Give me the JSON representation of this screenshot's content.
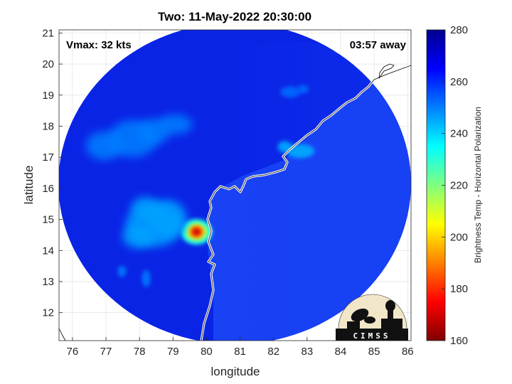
{
  "title": "Two: 11-May-2022 20:30:00",
  "info": {
    "vmax": "Vmax: 32 kts",
    "time_away": "03:57 away"
  },
  "axes": {
    "xlabel": "longitude",
    "ylabel": "latitude",
    "xlim": [
      75.6,
      86.1
    ],
    "ylim": [
      11.1,
      21.1
    ],
    "xticks": [
      "76",
      "77",
      "78",
      "79",
      "80",
      "81",
      "82",
      "83",
      "84",
      "85",
      "86"
    ],
    "yticks": [
      "12",
      "13",
      "14",
      "15",
      "16",
      "17",
      "18",
      "19",
      "20",
      "21"
    ],
    "grid": true
  },
  "colorbar": {
    "label": "Brightness Temp - Horizontal Polarization",
    "ticks": [
      "160",
      "180",
      "200",
      "220",
      "240",
      "260",
      "280"
    ],
    "range": [
      160,
      280
    ],
    "colormap": "jet"
  },
  "swath": {
    "background_temp": 268,
    "ocean_east_temp": 272
  },
  "convection": [
    {
      "name": "core",
      "lon": 79.7,
      "lat": 14.6,
      "temp": 180
    },
    {
      "name": "band-southwest",
      "lon": 78.6,
      "lat": 14.9,
      "temp": 246
    },
    {
      "name": "band-west",
      "lon": 77.8,
      "lat": 17.6,
      "temp": 250
    },
    {
      "name": "cells-coast",
      "lon": 82.8,
      "lat": 17.2,
      "temp": 244
    },
    {
      "name": "cells-north",
      "lon": 82.5,
      "lat": 19.1,
      "temp": 252
    },
    {
      "name": "cells-south",
      "lon": 78.2,
      "lat": 13.1,
      "temp": 250
    }
  ],
  "logo": {
    "text": "CIMSS"
  },
  "colors": {
    "coastline": "#ffffff",
    "land_outline": "#000000",
    "grid": "#dcdcdc"
  }
}
